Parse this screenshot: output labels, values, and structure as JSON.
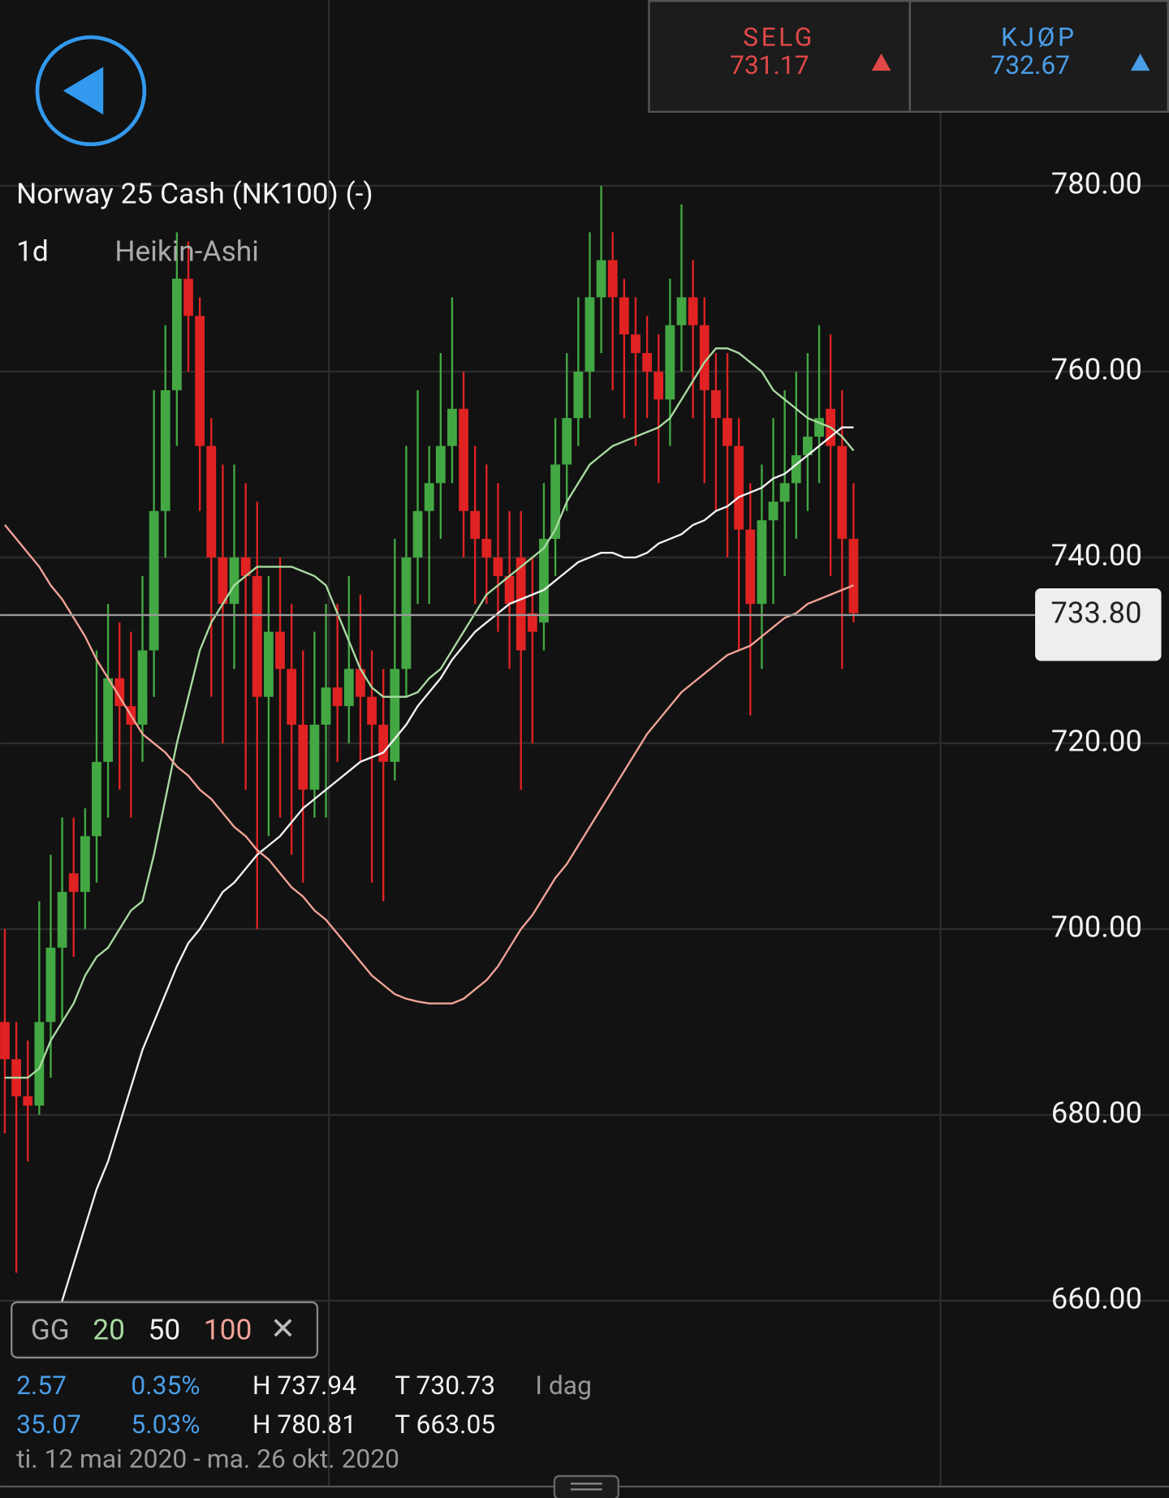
{
  "header": {
    "sell": {
      "label": "SELG",
      "price": "731.17"
    },
    "buy": {
      "label": "KJØP",
      "price": "732.67"
    }
  },
  "chart_data": {
    "type": "candlestick",
    "title": "Norway 25 Cash (NK100) (-)",
    "interval": "1d",
    "style": "Heikin-Ashi",
    "ylim": [
      640,
      800
    ],
    "yticks": [
      {
        "value": 660,
        "label": "660.00"
      },
      {
        "value": 680,
        "label": "680.00"
      },
      {
        "value": 700,
        "label": "700.00"
      },
      {
        "value": 720,
        "label": "720.00"
      },
      {
        "value": 740,
        "label": "740.00"
      },
      {
        "value": 760,
        "label": "760.00"
      },
      {
        "value": 780,
        "label": "780.00"
      }
    ],
    "grid": true,
    "current_price": {
      "value": 733.8,
      "label": "733.80"
    },
    "up_color": "#43a843",
    "down_color": "#e02222",
    "ohlc": [
      [
        690,
        700,
        678,
        686
      ],
      [
        686,
        690,
        663,
        682
      ],
      [
        682,
        688,
        675,
        681
      ],
      [
        681,
        703,
        680,
        690
      ],
      [
        690,
        708,
        684,
        698
      ],
      [
        698,
        712,
        690,
        704
      ],
      [
        706,
        712,
        697,
        704
      ],
      [
        704,
        713,
        700,
        710
      ],
      [
        710,
        730,
        705,
        718
      ],
      [
        718,
        735,
        712,
        727
      ],
      [
        727,
        733,
        715,
        724
      ],
      [
        724,
        732,
        712,
        722
      ],
      [
        722,
        738,
        718,
        730
      ],
      [
        730,
        758,
        725,
        745
      ],
      [
        745,
        765,
        740,
        758
      ],
      [
        758,
        775,
        752,
        770
      ],
      [
        770,
        774,
        760,
        766
      ],
      [
        766,
        768,
        745,
        752
      ],
      [
        752,
        755,
        725,
        740
      ],
      [
        740,
        750,
        720,
        735
      ],
      [
        735,
        750,
        728,
        740
      ],
      [
        740,
        748,
        715,
        738
      ],
      [
        738,
        746,
        700,
        725
      ],
      [
        725,
        738,
        710,
        732
      ],
      [
        732,
        740,
        712,
        728
      ],
      [
        728,
        735,
        708,
        722
      ],
      [
        722,
        730,
        705,
        715
      ],
      [
        715,
        732,
        712,
        722
      ],
      [
        722,
        735,
        712,
        726
      ],
      [
        726,
        735,
        718,
        724
      ],
      [
        724,
        738,
        720,
        728
      ],
      [
        728,
        736,
        718,
        725
      ],
      [
        725,
        730,
        705,
        722
      ],
      [
        722,
        728,
        703,
        718
      ],
      [
        718,
        742,
        716,
        728
      ],
      [
        728,
        752,
        725,
        740
      ],
      [
        740,
        758,
        735,
        745
      ],
      [
        745,
        752,
        735,
        748
      ],
      [
        748,
        762,
        742,
        752
      ],
      [
        752,
        768,
        748,
        756
      ],
      [
        756,
        760,
        740,
        745
      ],
      [
        745,
        752,
        735,
        742
      ],
      [
        742,
        750,
        735,
        740
      ],
      [
        740,
        748,
        732,
        738
      ],
      [
        738,
        745,
        728,
        735
      ],
      [
        740,
        745,
        715,
        730
      ],
      [
        734,
        740,
        720,
        732
      ],
      [
        733,
        748,
        730,
        742
      ],
      [
        742,
        755,
        738,
        750
      ],
      [
        750,
        762,
        745,
        755
      ],
      [
        755,
        768,
        752,
        760
      ],
      [
        760,
        775,
        755,
        768
      ],
      [
        768,
        780,
        762,
        772
      ],
      [
        772,
        775,
        758,
        768
      ],
      [
        768,
        770,
        755,
        764
      ],
      [
        764,
        768,
        752,
        762
      ],
      [
        762,
        766,
        755,
        760
      ],
      [
        760,
        764,
        748,
        757
      ],
      [
        757,
        770,
        752,
        765
      ],
      [
        765,
        778,
        760,
        768
      ],
      [
        768,
        772,
        755,
        765
      ],
      [
        765,
        768,
        748,
        758
      ],
      [
        758,
        762,
        745,
        755
      ],
      [
        755,
        762,
        740,
        752
      ],
      [
        752,
        755,
        730,
        743
      ],
      [
        743,
        748,
        723,
        735
      ],
      [
        735,
        750,
        728,
        744
      ],
      [
        744,
        755,
        735,
        746
      ],
      [
        746,
        758,
        738,
        748
      ],
      [
        748,
        760,
        742,
        751
      ],
      [
        751,
        762,
        745,
        753
      ],
      [
        753,
        765,
        748,
        755
      ],
      [
        756,
        764,
        738,
        752
      ],
      [
        752,
        758,
        728,
        742
      ],
      [
        742,
        748,
        733,
        734
      ]
    ],
    "legend_title": "GG",
    "series": [
      {
        "name": "20",
        "color": "#a9dba1",
        "values": [
          684,
          684,
          684,
          685,
          688,
          690,
          692,
          695,
          697,
          698,
          700,
          702,
          703,
          708,
          714,
          720,
          725,
          730,
          733,
          735,
          737,
          738,
          739,
          739,
          739,
          739,
          738.5,
          738,
          737,
          734,
          731,
          728,
          726,
          725,
          725,
          725,
          725.5,
          727,
          728,
          730,
          732,
          734,
          736,
          737,
          738,
          739,
          740,
          741,
          743,
          746,
          748,
          750,
          751,
          752,
          752.5,
          753,
          753.5,
          754,
          755,
          757,
          759,
          761,
          762.5,
          762.5,
          762,
          761,
          760,
          758,
          757,
          756,
          755,
          754.5,
          754,
          753,
          751.5
        ]
      },
      {
        "name": "50",
        "color": "#f2f2f2",
        "values": [
          null,
          null,
          null,
          null,
          657,
          660,
          664,
          668,
          672,
          675,
          679,
          683,
          687,
          690,
          693,
          696,
          698.5,
          700,
          702,
          704,
          705,
          706.5,
          708,
          709,
          710,
          711.5,
          713,
          714,
          715,
          716,
          717,
          718,
          718.5,
          719,
          720.5,
          722,
          724,
          725.5,
          727,
          729,
          730.5,
          732,
          733,
          734,
          735,
          735.5,
          736,
          736.5,
          737.5,
          738.5,
          739.5,
          740,
          740.5,
          740.5,
          740,
          740,
          740.5,
          741.5,
          742,
          742.5,
          743.5,
          744,
          745,
          745.5,
          746.5,
          747,
          747.5,
          748.5,
          749,
          750,
          751,
          752,
          753,
          754,
          754
        ]
      },
      {
        "name": "100",
        "color": "#f2a397",
        "values": [
          743.5,
          742,
          740.5,
          739,
          737,
          735.5,
          733.5,
          731.5,
          729,
          727,
          725,
          723,
          721,
          720,
          719,
          717.5,
          716.5,
          715,
          714,
          712.5,
          711,
          710,
          708.5,
          707.5,
          706,
          704.5,
          703.5,
          702,
          701,
          699.5,
          698,
          696.5,
          695,
          694,
          693,
          692.5,
          692.2,
          692,
          692,
          692,
          692.5,
          693.5,
          694.5,
          696,
          698,
          700,
          701.5,
          703.5,
          705.5,
          707,
          709,
          711,
          713,
          715,
          717,
          719,
          721,
          722.5,
          724,
          725.5,
          726.5,
          727.5,
          728.5,
          729.5,
          730,
          730.5,
          731.5,
          732.5,
          733.5,
          734,
          735,
          735.5,
          736,
          736.5,
          737
        ]
      }
    ]
  },
  "stats": {
    "rows": [
      [
        "2.57",
        "0.35%",
        "H 737.94",
        "T 730.73",
        "I dag"
      ],
      [
        "35.07",
        "5.03%",
        "H 780.81",
        "T 663.05"
      ]
    ],
    "date_range": "ti. 12 mai 2020 - ma. 26 okt. 2020"
  }
}
